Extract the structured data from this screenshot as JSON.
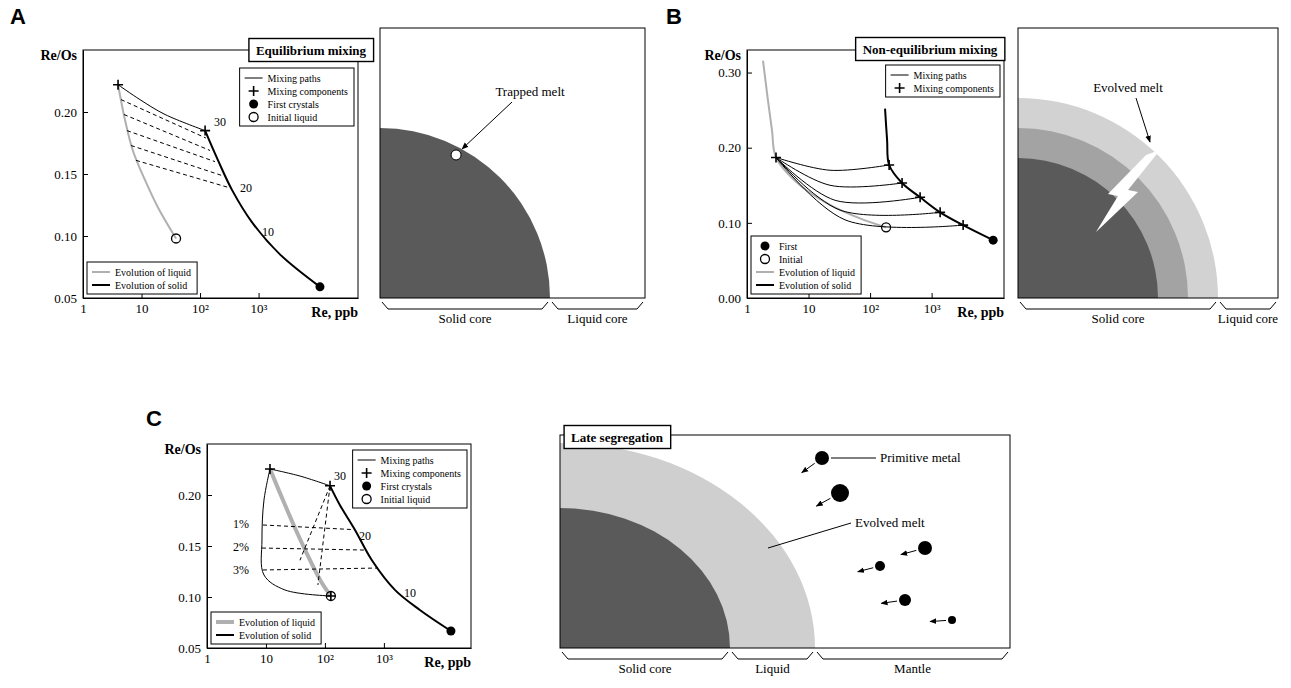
{
  "chart_data": [
    {
      "type": "line",
      "title": "Equilibrium mixing",
      "xlabel": "Re, ppb",
      "ylabel": "Re/Os",
      "log": "x",
      "xlim": [
        1,
        50000
      ],
      "xticks": [
        1,
        10,
        {
          "value": 100,
          "label": "10²"
        },
        {
          "value": 1000,
          "label": "10³"
        }
      ],
      "ylim": [
        0.05,
        0.25
      ],
      "yticks": [
        0.05,
        {
          "value": 0.1,
          "label": "0.10"
        },
        0.15,
        {
          "value": 0.2,
          "label": "0.20"
        }
      ],
      "legend": "upper right",
      "series": [
        {
          "name": "Evolution of liquid",
          "color": "#b0b0b0",
          "x": [
            3.97,
            5.2,
            7.1,
            11.5,
            19.1,
            38.9
          ],
          "values": [
            0.222,
            0.194,
            0.169,
            0.145,
            0.123,
            0.098
          ]
        },
        {
          "name": "Evolution of solid",
          "color": "#000000",
          "x": [
            11200,
            2340,
            775,
            353,
            203,
            122
          ],
          "values": [
            0.059,
            0.085,
            0.111,
            0.137,
            0.161,
            0.185
          ]
        },
        {
          "name": "Mixing paths",
          "color": "#000000",
          "x": [
            3.97,
            9.4,
            25.2,
            122
          ],
          "values": [
            0.222,
            0.21,
            0.198,
            0.185
          ]
        },
        {
          "color": "#000000",
          "line_style": "dashed",
          "x": [
            4.46,
            126,
            null,
            5.0,
            148,
            null,
            5.65,
            180,
            null,
            6.6,
            229,
            null,
            8.05,
            313
          ],
          "values": [
            0.21,
            0.179,
            null,
            0.198,
            0.169,
            null,
            0.185,
            0.16,
            null,
            0.173,
            0.149,
            null,
            0.161,
            0.139
          ]
        },
        {
          "name": "Mixing components",
          "type": "scatter",
          "marker": "plus",
          "color": "#000000",
          "x": [
            3.97,
            122
          ],
          "values": [
            0.222,
            0.185
          ]
        },
        {
          "name": "First crystals",
          "type": "scatter",
          "marker": "circle",
          "color": "#000000",
          "x": [
            11200
          ],
          "values": [
            0.059
          ]
        },
        {
          "name": "Initial liquid",
          "type": "scatter",
          "marker": "open-circle",
          "color": "#000000",
          "x": [
            38.9
          ],
          "values": [
            0.098
          ]
        }
      ],
      "annotations": [
        {
          "text": "30",
          "x": 220,
          "y": 0.192
        },
        {
          "text": "20",
          "x": 611,
          "y": 0.1387
        },
        {
          "text": "10",
          "x": 1453,
          "y": 0.103
        }
      ]
    },
    {
      "type": "line",
      "title": "Non-equilibrium mixing",
      "xlabel": "Re, ppb",
      "ylabel": "Re/Os",
      "log": "x",
      "xlim": [
        1,
        15000
      ],
      "xticks": [
        1,
        10,
        {
          "value": 100,
          "label": "10²"
        },
        {
          "value": 1000,
          "label": "10³"
        }
      ],
      "ylim": [
        0,
        0.33
      ],
      "yticks": [
        {
          "value": 0,
          "label": "0.00"
        },
        {
          "value": 0.1,
          "label": "0.10"
        },
        {
          "value": 0.2,
          "label": "0.20"
        },
        {
          "value": 0.3,
          "label": "0.30"
        }
      ],
      "legend": "upper right",
      "series": [
        {
          "name": "Evolution of liquid",
          "color": "#b0b0b0",
          "x": [
            1.82,
            2.19,
            2.55,
            2.96,
            7.3,
            22.3,
            68.6,
            182
          ],
          "values": [
            0.316,
            0.263,
            0.223,
            0.187,
            0.15,
            0.124,
            0.106,
            0.094
          ]
        },
        {
          "name": "Evolution of solid",
          "color": "#000000",
          "x": [
            175,
            189,
            204,
            331,
            650,
            1374,
            3250,
            10000
          ],
          "values": [
            0.252,
            0.21,
            0.177,
            0.153,
            0.134,
            0.114,
            0.097,
            0.077
          ]
        },
        {
          "name": "Mixing paths",
          "color": "#000000",
          "x": [
            2.96,
            22.3,
            204,
            null,
            2.96,
            22.3,
            331,
            null,
            2.96,
            27,
            650,
            null,
            2.96,
            32.5,
            1374,
            null,
            2.96,
            39.2,
            3250
          ],
          "values": [
            0.187,
            0.17,
            0.177,
            null,
            0.187,
            0.15,
            0.153,
            null,
            0.187,
            0.13,
            0.134,
            null,
            0.187,
            0.117,
            0.114,
            null,
            0.187,
            0.104,
            0.097
          ]
        },
        {
          "name": "Mixing components",
          "type": "scatter",
          "marker": "plus",
          "color": "#000000",
          "x": [
            2.96,
            204,
            331,
            650,
            1374,
            3250
          ],
          "values": [
            0.187,
            0.177,
            0.153,
            0.134,
            0.114,
            0.097
          ]
        },
        {
          "name": "First",
          "type": "scatter",
          "marker": "circle",
          "color": "#000000",
          "x": [
            10000
          ],
          "values": [
            0.077
          ]
        },
        {
          "name": "Initial",
          "type": "scatter",
          "marker": "open-circle",
          "color": "#000000",
          "x": [
            182
          ],
          "values": [
            0.094
          ]
        }
      ]
    },
    {
      "type": "line",
      "title": "Late segregation",
      "xlabel": "Re, ppb",
      "ylabel": "Re/Os",
      "log": "x",
      "xlim": [
        1,
        30000
      ],
      "xticks": [
        1,
        10,
        {
          "value": 100,
          "label": "10²"
        },
        {
          "value": 1000,
          "label": "10³"
        }
      ],
      "ylim": [
        0.05,
        0.25
      ],
      "yticks": [
        0.05,
        {
          "value": 0.1,
          "label": "0.10"
        },
        0.15,
        {
          "value": 0.2,
          "label": "0.20"
        }
      ],
      "legend": "upper right",
      "series": [
        {
          "name": "Evolution of liquid",
          "color": "#b0b0b0",
          "x": [
            11.7,
            19.4,
            32.2,
            55.7,
            89,
            126
          ],
          "values": [
            0.2255,
            0.195,
            0.1657,
            0.1363,
            0.1137,
            0.101
          ]
        },
        {
          "name": "Evolution of solid",
          "color": "#000000",
          "x": [
            13700,
            4070,
            1536,
            626,
            322,
            180,
            122
          ],
          "values": [
            0.0667,
            0.0873,
            0.107,
            0.136,
            0.166,
            0.19,
            0.209
          ]
        },
        {
          "name": "Mixing paths",
          "color": "#000000",
          "x": [
            11.7,
            9.25,
            8.55,
            9.25,
            21,
            126,
            null,
            11.7,
            37.7,
            122
          ],
          "values": [
            0.2255,
            0.195,
            0.1559,
            0.1216,
            0.1069,
            0.101,
            null,
            0.2255,
            0.2186,
            0.209
          ]
        },
        {
          "color": "#000000",
          "line_style": "dashed",
          "x": [
            8.9,
            322,
            null,
            8.55,
            495,
            null,
            8.9,
            791,
            null,
            122,
            37.7,
            null,
            122,
            76
          ],
          "values": [
            0.1706,
            0.166,
            null,
            0.148,
            0.146,
            null,
            0.1265,
            0.1284,
            null,
            0.209,
            0.136,
            null,
            0.209,
            0.1118
          ]
        },
        {
          "name": "Mixing components",
          "type": "scatter",
          "marker": "plus",
          "color": "#000000",
          "x": [
            11.7,
            122,
            126
          ],
          "values": [
            0.2255,
            0.209,
            0.101
          ]
        },
        {
          "name": "First crystals",
          "type": "scatter",
          "marker": "circle",
          "color": "#000000",
          "x": [
            13700
          ],
          "values": [
            0.0667
          ]
        },
        {
          "name": "Initial liquid",
          "type": "scatter",
          "marker": "open-circle",
          "color": "#000000",
          "x": [
            126
          ],
          "values": [
            0.101
          ]
        }
      ],
      "annotations": [
        {
          "text": "30",
          "x": 180,
          "y": 0.2186
        },
        {
          "text": "20",
          "x": 476,
          "y": 0.1598
        },
        {
          "text": "10",
          "x": 2760,
          "y": 0.104
        },
        {
          "text": "1%",
          "x": 3.77,
          "y": 0.1716
        },
        {
          "text": "2%",
          "x": 3.77,
          "y": 0.149
        },
        {
          "text": "3%",
          "x": 3.77,
          "y": 0.1265
        }
      ]
    }
  ],
  "panels": [
    {
      "letter": "A",
      "labels": [
        "Solid core",
        "Liquid core"
      ],
      "callouts": [
        "Trapped melt"
      ]
    },
    {
      "letter": "B",
      "labels": [
        "Solid core",
        "Liquid core"
      ],
      "callouts": [
        "Evolved melt"
      ]
    },
    {
      "letter": "C",
      "labels": [
        "Solid core",
        "Liquid",
        "Mantle"
      ],
      "callouts": [
        "Primitive metal",
        "Evolved melt"
      ]
    }
  ]
}
